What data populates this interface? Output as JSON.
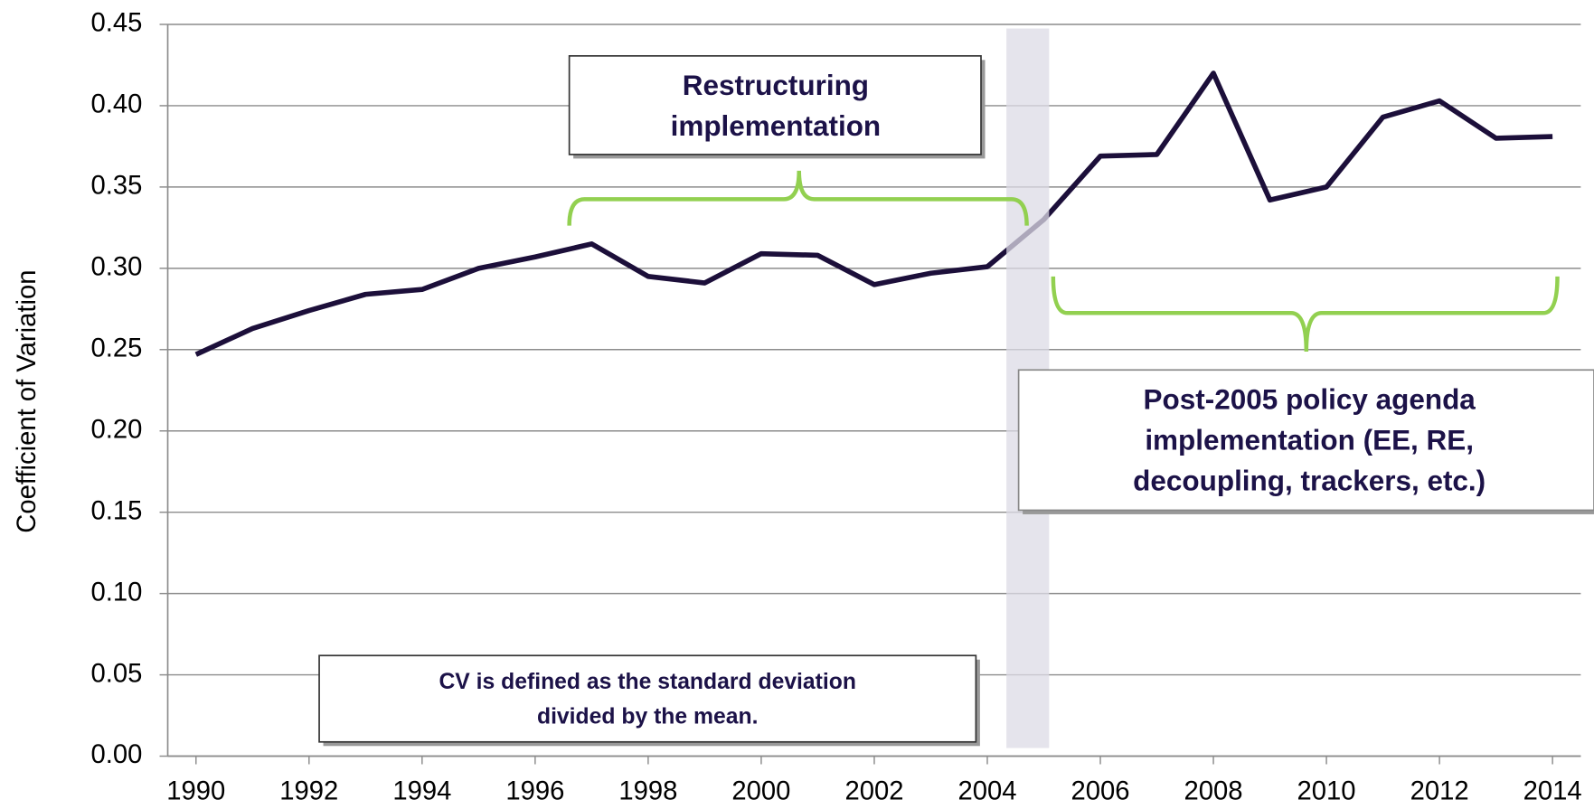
{
  "chart_data": {
    "type": "line",
    "ylabel": "Coefficient of Variation",
    "x": [
      1990,
      1991,
      1992,
      1993,
      1994,
      1995,
      1996,
      1997,
      1998,
      1999,
      2000,
      2001,
      2002,
      2003,
      2004,
      2005,
      2006,
      2007,
      2008,
      2009,
      2010,
      2011,
      2012,
      2013,
      2014
    ],
    "series": [
      {
        "color": "#1c0f3a",
        "values": [
          0.247,
          0.263,
          0.274,
          0.284,
          0.287,
          0.3,
          0.307,
          0.315,
          0.295,
          0.291,
          0.309,
          0.308,
          0.29,
          0.297,
          0.301,
          0.33,
          0.369,
          0.37,
          0.42,
          0.342,
          0.35,
          0.393,
          0.403,
          0.38,
          0.381
        ]
      }
    ],
    "xlim": [
      1989.5,
      2014.5
    ],
    "xticks": [
      1990,
      1992,
      1994,
      1996,
      1998,
      2000,
      2002,
      2004,
      2006,
      2008,
      2010,
      2012,
      2014
    ],
    "ylim": [
      0,
      0.45
    ],
    "yticks": [
      {
        "value": 0,
        "label": "0.00"
      },
      0.05,
      {
        "value": 0.1,
        "label": "0.10"
      },
      0.15,
      {
        "value": 0.2,
        "label": "0.20"
      },
      0.25,
      {
        "value": 0.3,
        "label": "0.30"
      },
      0.35,
      {
        "value": 0.4,
        "label": "0.40"
      },
      0.45
    ],
    "grid": true,
    "annotations": [
      {
        "lines": [
          "Restructuring",
          "implementation"
        ]
      },
      {
        "lines": [
          "Post-2005 policy agenda",
          "implementation (EE, RE,",
          "decoupling, trackers, etc.)"
        ]
      },
      {
        "lines": [
          "CV is defined as the standard deviation",
          "divided by the mean."
        ]
      }
    ]
  }
}
